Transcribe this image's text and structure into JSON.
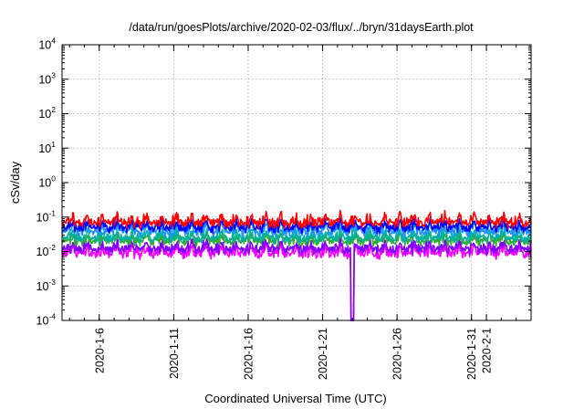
{
  "chart_data": {
    "type": "line",
    "title": "/data/run/goesPlots/archive/2020-02-03/flux/../bryn/31daysEarth.plot",
    "xlabel": "Coordinated Universal Time (UTC)",
    "ylabel": "cSv/day",
    "yscale": "log",
    "ylim": [
      0.0001,
      10000
    ],
    "y_ticks": [
      {
        "base": "10",
        "exp": "4",
        "value": 10000
      },
      {
        "base": "10",
        "exp": "3",
        "value": 1000
      },
      {
        "base": "10",
        "exp": "2",
        "value": 100
      },
      {
        "base": "10",
        "exp": "1",
        "value": 10
      },
      {
        "base": "10",
        "exp": "0",
        "value": 1
      },
      {
        "base": "10",
        "exp": "-1",
        "value": 0.1
      },
      {
        "base": "10",
        "exp": "-2",
        "value": 0.01
      },
      {
        "base": "10",
        "exp": "-3",
        "value": 0.001
      },
      {
        "base": "10",
        "exp": "-4",
        "value": 0.0001
      }
    ],
    "xlim": [
      "2020-01-03T12:00",
      "2020-02-04T00:00"
    ],
    "x_ticks": [
      "2020-1-6",
      "2020-1-11",
      "2020-1-16",
      "2020-1-21",
      "2020-1-26",
      "2020-1-31",
      "2020-2-1"
    ],
    "grid": true,
    "series": [
      {
        "color": "#ff0000",
        "typical_value": 0.07,
        "peak_value": 0.15
      },
      {
        "color": "#0000ff",
        "typical_value": 0.05,
        "peak_value": 0.1
      },
      {
        "color": "#1e90ff",
        "typical_value": 0.04,
        "peak_value": 0.09
      },
      {
        "color": "#00b2a0",
        "typical_value": 0.025,
        "peak_value": 0.05
      },
      {
        "color": "#33aa33",
        "typical_value": 0.02,
        "peak_value": 0.04
      },
      {
        "color": "#8000ff",
        "typical_value": 0.012,
        "peak_value": 0.025
      },
      {
        "color": "#ff00ff",
        "typical_value": 0.009,
        "peak_value": 0.02
      }
    ],
    "events": [
      {
        "date": "2020-01-23",
        "description": "dropout",
        "min_value": 0.0001
      }
    ]
  }
}
